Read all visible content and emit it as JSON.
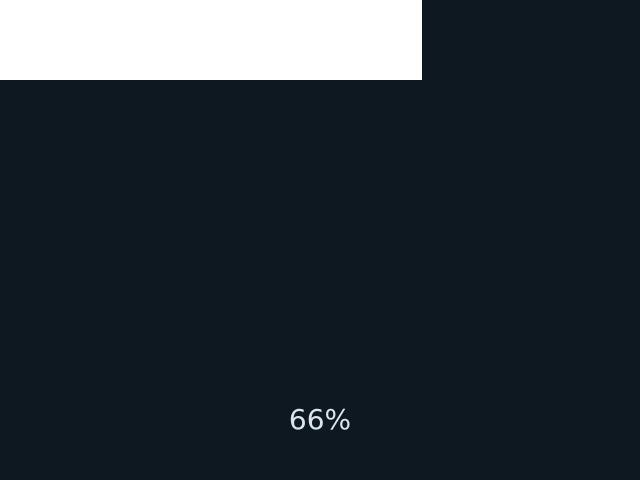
{
  "progress": {
    "value": 0.66,
    "label": "66%"
  },
  "colors": {
    "background": "#0e1821",
    "fill": "#ffffff",
    "text": "#dde3ea"
  }
}
